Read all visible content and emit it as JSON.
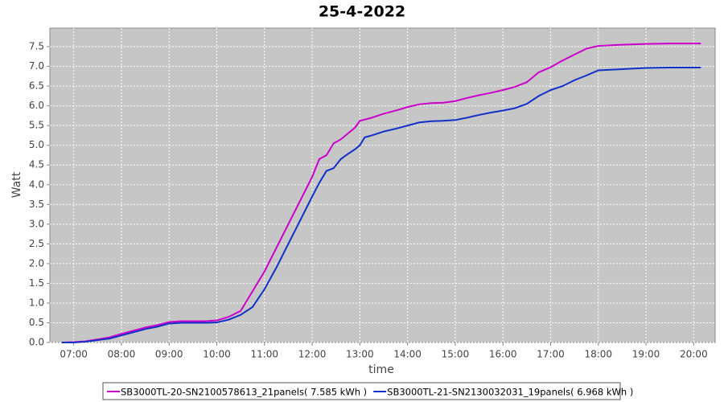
{
  "chart_data": {
    "type": "line",
    "title": "25-4-2022",
    "xlabel": "time",
    "ylabel": "Watt",
    "x": [
      6.75,
      7,
      7.25,
      7.5,
      7.75,
      8,
      8.25,
      8.5,
      8.75,
      9,
      9.25,
      9.5,
      9.75,
      10,
      10.25,
      10.5,
      10.75,
      11,
      11.25,
      11.5,
      11.75,
      12,
      12.15,
      12.3,
      12.45,
      12.6,
      12.75,
      12.9,
      13,
      13.1,
      13.25,
      13.5,
      13.75,
      14,
      14.25,
      14.5,
      14.75,
      15,
      15.25,
      15.5,
      15.75,
      16,
      16.25,
      16.5,
      16.75,
      17,
      17.25,
      17.5,
      17.75,
      18,
      18.5,
      19,
      19.5,
      20.15
    ],
    "series": [
      {
        "name": "SB3000TL-20-SN2100578613_21panels( 7.585 kWh )",
        "color": "#cc00cc",
        "values": [
          0,
          0.01,
          0.03,
          0.08,
          0.13,
          0.22,
          0.3,
          0.38,
          0.44,
          0.52,
          0.54,
          0.54,
          0.54,
          0.56,
          0.65,
          0.8,
          1.3,
          1.8,
          2.4,
          3.0,
          3.6,
          4.2,
          4.65,
          4.75,
          5.05,
          5.15,
          5.3,
          5.45,
          5.62,
          5.65,
          5.7,
          5.8,
          5.88,
          5.97,
          6.04,
          6.07,
          6.08,
          6.12,
          6.2,
          6.27,
          6.33,
          6.4,
          6.48,
          6.6,
          6.85,
          6.98,
          7.15,
          7.3,
          7.45,
          7.52,
          7.55,
          7.57,
          7.58,
          7.58
        ]
      },
      {
        "name": "SB3000TL-21-SN2130032031_19panels( 6.968 kWh )",
        "color": "#1030c8",
        "values": [
          0,
          0,
          0.02,
          0.06,
          0.1,
          0.18,
          0.26,
          0.34,
          0.4,
          0.48,
          0.5,
          0.5,
          0.5,
          0.51,
          0.58,
          0.7,
          0.9,
          1.35,
          1.9,
          2.5,
          3.1,
          3.7,
          4.05,
          4.35,
          4.42,
          4.65,
          4.78,
          4.9,
          5.0,
          5.2,
          5.25,
          5.35,
          5.42,
          5.5,
          5.58,
          5.61,
          5.62,
          5.64,
          5.7,
          5.77,
          5.83,
          5.88,
          5.94,
          6.05,
          6.25,
          6.4,
          6.5,
          6.65,
          6.77,
          6.9,
          6.93,
          6.96,
          6.97,
          6.97
        ]
      }
    ],
    "xlim": [
      6.5,
      20.45
    ],
    "xticks": [
      {
        "value": 7,
        "label": "07:00"
      },
      {
        "value": 8,
        "label": "08:00"
      },
      {
        "value": 9,
        "label": "09:00"
      },
      {
        "value": 10,
        "label": "10:00"
      },
      {
        "value": 11,
        "label": "11:00"
      },
      {
        "value": 12,
        "label": "12:00"
      },
      {
        "value": 13,
        "label": "13:00"
      },
      {
        "value": 14,
        "label": "14:00"
      },
      {
        "value": 15,
        "label": "15:00"
      },
      {
        "value": 16,
        "label": "16:00"
      },
      {
        "value": 17,
        "label": "17:00"
      },
      {
        "value": 18,
        "label": "18:00"
      },
      {
        "value": 19,
        "label": "19:00"
      },
      {
        "value": 20,
        "label": "20:00"
      }
    ],
    "ylim": [
      0,
      7.97
    ],
    "yticks": [
      {
        "value": 0,
        "label": "0.0"
      },
      0.5,
      {
        "value": 1,
        "label": "1.0"
      },
      1.5,
      {
        "value": 2,
        "label": "2.0"
      },
      2.5,
      {
        "value": 3,
        "label": "3.0"
      },
      3.5,
      {
        "value": 4,
        "label": "4.0"
      },
      4.5,
      {
        "value": 5,
        "label": "5.0"
      },
      5.5,
      {
        "value": 6,
        "label": "6.0"
      },
      6.5,
      {
        "value": 7,
        "label": "7.0"
      },
      7.5
    ],
    "grid": true
  }
}
